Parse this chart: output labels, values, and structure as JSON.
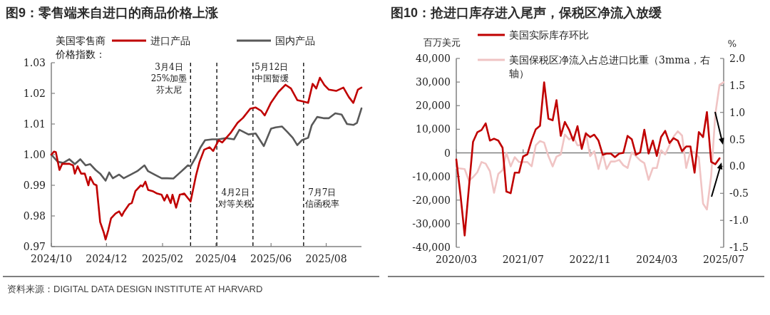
{
  "chart_data": [
    {
      "type": "line",
      "title": "图9：零售端来自进口的商品价格上涨",
      "legend_title": "美国零售商价格指数：",
      "legend": "top",
      "annotations": [
        "资料来源：DIGITAL DATA DESIGN INSTITUTE AT HARVARD"
      ],
      "xlim": [
        "2024-10-01",
        "2025-09-09"
      ],
      "xticks": [
        {
          "value": "2024-10-01",
          "label": "2024/10"
        },
        {
          "value": "2024-12-01",
          "label": "2024/12"
        },
        {
          "value": "2025-02-01",
          "label": "2025/02"
        },
        {
          "value": "2025-04-01",
          "label": "2025/04"
        },
        {
          "value": "2025-06-01",
          "label": "2025/06"
        },
        {
          "value": "2025-08-01",
          "label": "2025/08"
        }
      ],
      "ylim": [
        0.97,
        1.03
      ],
      "yticks": [
        0.97,
        0.98,
        0.99,
        {
          "value": 1,
          "label": "1.00"
        },
        1.01,
        1.02,
        1.03
      ],
      "ref_lines": [
        {
          "axis": "x",
          "value": "2025-03-04",
          "label": "3月4日25%加墨芬太尼",
          "line_style": "dashed",
          "color": "#000000"
        },
        {
          "axis": "x",
          "value": "2025-04-02",
          "label": "4月2日对等关税",
          "line_style": "dashed",
          "color": "#000000"
        },
        {
          "axis": "x",
          "value": "2025-05-12",
          "label": "5月12日中国暂缓",
          "line_style": "dashed",
          "color": "#000000"
        },
        {
          "axis": "x",
          "value": "2025-07-07",
          "label": "7月7日信函税率",
          "line_style": "dashed",
          "color": "#000000"
        }
      ],
      "series": [
        {
          "name": "进口产品",
          "color": "#c00000",
          "x": [
            "2024-10-01",
            "2024-10-04",
            "2024-10-06",
            "2024-10-10",
            "2024-10-13",
            "2024-10-21",
            "2024-10-25",
            "2024-10-27",
            "2024-10-30",
            "2024-11-03",
            "2024-11-07",
            "2024-11-11",
            "2024-11-13",
            "2024-11-17",
            "2024-11-20",
            "2024-11-24",
            "2024-11-28",
            "2024-11-30",
            "2024-12-03",
            "2024-12-06",
            "2024-12-11",
            "2024-12-15",
            "2024-12-18",
            "2024-12-20",
            "2024-12-26",
            "2024-12-29",
            "2025-01-02",
            "2025-01-08",
            "2025-01-10",
            "2025-01-13",
            "2025-01-16",
            "2025-01-21",
            "2025-01-26",
            "2025-01-31",
            "2025-02-03",
            "2025-02-06",
            "2025-02-10",
            "2025-02-12",
            "2025-02-16",
            "2025-02-20",
            "2025-02-25",
            "2025-03-01",
            "2025-03-04",
            "2025-03-10",
            "2025-03-14",
            "2025-03-19",
            "2025-03-25",
            "2025-03-29",
            "2025-04-04",
            "2025-04-08",
            "2025-04-17",
            "2025-04-25",
            "2025-05-01",
            "2025-05-09",
            "2025-05-15",
            "2025-05-21",
            "2025-05-25",
            "2025-06-01",
            "2025-06-09",
            "2025-06-17",
            "2025-06-23",
            "2025-06-30",
            "2025-07-06",
            "2025-07-12",
            "2025-07-17",
            "2025-07-21",
            "2025-07-25",
            "2025-07-30",
            "2025-08-04",
            "2025-08-12",
            "2025-08-20",
            "2025-08-26",
            "2025-08-31",
            "2025-09-05",
            "2025-09-09"
          ],
          "values": [
            1.0,
            1.001,
            1.0008,
            0.995,
            0.997,
            0.997,
            0.9965,
            0.9938,
            0.9962,
            0.9938,
            0.9938,
            0.99,
            0.9927,
            0.9904,
            0.99,
            0.978,
            0.9746,
            0.9723,
            0.9754,
            0.9792,
            0.9808,
            0.9815,
            0.98,
            0.9812,
            0.9838,
            0.9842,
            0.9881,
            0.99,
            0.9896,
            0.9912,
            0.9885,
            0.9881,
            0.9873,
            0.9869,
            0.985,
            0.9869,
            0.9842,
            0.9869,
            0.9827,
            0.9869,
            0.9873,
            0.9858,
            0.9847,
            0.9932,
            0.9977,
            1.0016,
            1.0024,
            1.0012,
            1.0047,
            1.004,
            1.007,
            1.0104,
            1.012,
            1.015,
            1.0154,
            1.0143,
            1.0128,
            1.017,
            1.0204,
            1.0228,
            1.0216,
            1.0178,
            1.0174,
            1.0169,
            1.0231,
            1.0216,
            1.0251,
            1.0227,
            1.0212,
            1.0208,
            1.0219,
            1.0188,
            1.0169,
            1.0212,
            1.0219
          ]
        },
        {
          "name": "国内产品",
          "color": "#595959",
          "x": [
            "2024-10-01",
            "2024-10-08",
            "2024-10-14",
            "2024-10-21",
            "2024-10-27",
            "2024-11-02",
            "2024-11-08",
            "2024-11-13",
            "2024-11-19",
            "2024-11-24",
            "2024-11-30",
            "2024-12-04",
            "2024-12-08",
            "2024-12-15",
            "2024-12-20",
            "2024-12-28",
            "2025-01-04",
            "2025-01-12",
            "2025-01-16",
            "2025-01-23",
            "2025-01-31",
            "2025-02-06",
            "2025-02-13",
            "2025-02-19",
            "2025-02-25",
            "2025-03-01",
            "2025-03-04",
            "2025-03-10",
            "2025-03-15",
            "2025-03-20",
            "2025-03-28",
            "2025-04-04",
            "2025-04-12",
            "2025-04-21",
            "2025-04-27",
            "2025-05-07",
            "2025-05-15",
            "2025-05-24",
            "2025-06-01",
            "2025-06-06",
            "2025-06-13",
            "2025-06-19",
            "2025-06-25",
            "2025-06-30",
            "2025-07-05",
            "2025-07-12",
            "2025-07-16",
            "2025-07-22",
            "2025-07-29",
            "2025-08-04",
            "2025-08-11",
            "2025-08-18",
            "2025-08-24",
            "2025-08-31",
            "2025-09-04",
            "2025-09-09"
          ],
          "values": [
            1.0,
            0.9977,
            0.9973,
            0.9985,
            0.9969,
            0.9985,
            0.9965,
            0.9969,
            0.995,
            0.9938,
            0.9915,
            0.9942,
            0.9923,
            0.9935,
            0.9923,
            0.9935,
            0.9946,
            0.9965,
            0.9946,
            0.9935,
            0.9923,
            0.9923,
            0.9922,
            0.9938,
            0.9954,
            0.9965,
            0.9962,
            0.9993,
            1.0024,
            1.0047,
            1.005,
            1.005,
            1.0054,
            1.005,
            1.0081,
            1.0066,
            1.0069,
            1.0028,
            1.0085,
            1.0089,
            1.0092,
            1.0074,
            1.0055,
            1.0031,
            1.0047,
            1.0055,
            1.0096,
            1.0123,
            1.0119,
            1.0119,
            1.0135,
            1.0131,
            1.01,
            1.0097,
            1.0104,
            1.0151
          ]
        }
      ]
    },
    {
      "type": "line",
      "title": "图10：抢进口库存进入尾声，保税区净流入放缓",
      "ylabel": "百万美元",
      "y2label": "%",
      "legend": "top",
      "xlim": [
        "2020-03",
        "2025-07"
      ],
      "xticks": [
        {
          "value": "2020-03",
          "label": "2020/03"
        },
        {
          "value": "2021-07",
          "label": "2021/07"
        },
        {
          "value": "2022-11",
          "label": "2022/11"
        },
        {
          "value": "2024-03",
          "label": "2024/03"
        },
        {
          "value": "2025-07",
          "label": "2025/07"
        }
      ],
      "ylim": [
        -40000,
        40000
      ],
      "yticks": [
        {
          "value": -40000,
          "label": "-40,000"
        },
        {
          "value": -30000,
          "label": "-30,000"
        },
        {
          "value": -20000,
          "label": "-20,000"
        },
        {
          "value": -10000,
          "label": "-10,000"
        },
        0,
        {
          "value": 10000,
          "label": "10,000"
        },
        {
          "value": 20000,
          "label": "20,000"
        },
        {
          "value": 30000,
          "label": "30,000"
        },
        {
          "value": 40000,
          "label": "40,000"
        }
      ],
      "y2lim": [
        -1.5,
        2.0
      ],
      "y2ticks": [
        -1.5,
        {
          "value": -1,
          "label": "-1.0"
        },
        -0.5,
        {
          "value": 0,
          "label": "0.0"
        },
        0.5,
        {
          "value": 1,
          "label": "1.0"
        },
        1.5,
        {
          "value": 2,
          "label": "2.0"
        }
      ],
      "series": [
        {
          "name": "美国实际库存环比",
          "color": "#c00000",
          "x": [
            "2020-03",
            "2020-04",
            "2020-05",
            "2020-06",
            "2020-07",
            "2020-08",
            "2020-09",
            "2020-10",
            "2020-11",
            "2020-12",
            "2021-01",
            "2021-02",
            "2021-03",
            "2021-04",
            "2021-05",
            "2021-06",
            "2021-07",
            "2021-08",
            "2021-09",
            "2021-10",
            "2021-11",
            "2021-12",
            "2022-01",
            "2022-02",
            "2022-03",
            "2022-04",
            "2022-05",
            "2022-06",
            "2022-07",
            "2022-08",
            "2022-09",
            "2022-10",
            "2022-11",
            "2022-12",
            "2023-01",
            "2023-02",
            "2023-03",
            "2023-04",
            "2023-05",
            "2023-06",
            "2023-07",
            "2023-08",
            "2023-09",
            "2023-10",
            "2023-11",
            "2023-12",
            "2024-01",
            "2024-02",
            "2024-03",
            "2024-04",
            "2024-05",
            "2024-06",
            "2024-07",
            "2024-08",
            "2024-09",
            "2024-10",
            "2024-11",
            "2024-12",
            "2025-01",
            "2025-02",
            "2025-03",
            "2025-04",
            "2025-05",
            "2025-06"
          ],
          "values": [
            -2800,
            -18000,
            -35000,
            -14600,
            4700,
            8700,
            9700,
            12500,
            5200,
            6000,
            5200,
            2200,
            -16400,
            -17100,
            -8400,
            -8400,
            -1500,
            -600,
            5400,
            10000,
            11500,
            29900,
            14500,
            13800,
            22300,
            7200,
            13100,
            9800,
            5200,
            11300,
            1700,
            8200,
            6700,
            7700,
            5200,
            -800,
            -300,
            -300,
            -1800,
            -300,
            0,
            7200,
            5700,
            -800,
            200,
            9800,
            -300,
            5200,
            -1300,
            6700,
            9300,
            4200,
            6200,
            5200,
            700,
            2700,
            2700,
            -8400,
            8800,
            6700,
            17300,
            -3800,
            -4800,
            -2300
          ]
        },
        {
          "name": "美国保税区净流入占总进口比重（3mma，右轴）",
          "color": "#f0c4c4",
          "axis": "y2",
          "x": [
            "2020-03",
            "2020-04",
            "2020-05",
            "2020-06",
            "2020-07",
            "2020-08",
            "2020-09",
            "2020-10",
            "2020-11",
            "2020-12",
            "2021-01",
            "2021-02",
            "2021-03",
            "2021-04",
            "2021-05",
            "2021-06",
            "2021-07",
            "2021-08",
            "2021-09",
            "2021-10",
            "2021-11",
            "2021-12",
            "2022-01",
            "2022-02",
            "2022-03",
            "2022-04",
            "2022-05",
            "2022-06",
            "2022-07",
            "2022-08",
            "2022-09",
            "2022-10",
            "2022-11",
            "2022-12",
            "2023-01",
            "2023-02",
            "2023-03",
            "2023-04",
            "2023-05",
            "2023-06",
            "2023-07",
            "2023-08",
            "2023-09",
            "2023-10",
            "2023-11",
            "2023-12",
            "2024-01",
            "2024-02",
            "2024-03",
            "2024-04",
            "2024-05",
            "2024-06",
            "2024-07",
            "2024-08",
            "2024-09",
            "2024-10",
            "2024-11",
            "2024-12",
            "2025-01",
            "2025-02",
            "2025-03",
            "2025-04",
            "2025-05",
            "2025-06",
            "2025-07"
          ],
          "values": [
            -0.03,
            -0.04,
            -0.05,
            -0.27,
            -0.2,
            -0.11,
            0.08,
            0.05,
            -0.09,
            -0.49,
            -0.14,
            -0.07,
            0.25,
            0.0,
            0.17,
            0.08,
            0.08,
            0.08,
            0.0,
            0.39,
            0.47,
            0.44,
            0.19,
            0.0,
            0.18,
            0.22,
            0.59,
            0.5,
            0.55,
            0.39,
            0.39,
            0.63,
            0.19,
            0.28,
            -0.05,
            0.24,
            -0.05,
            0.09,
            0.09,
            0.12,
            0.02,
            -0.03,
            0.26,
            0.19,
            0.11,
            0.06,
            -0.25,
            -0.03,
            -0.03,
            0.3,
            0.22,
            0.39,
            0.55,
            0.65,
            0.57,
            -0.03,
            0.28,
            0.26,
            0.17,
            -0.69,
            -0.8,
            -0.18,
            0.96,
            1.51,
            1.56
          ]
        }
      ]
    }
  ]
}
